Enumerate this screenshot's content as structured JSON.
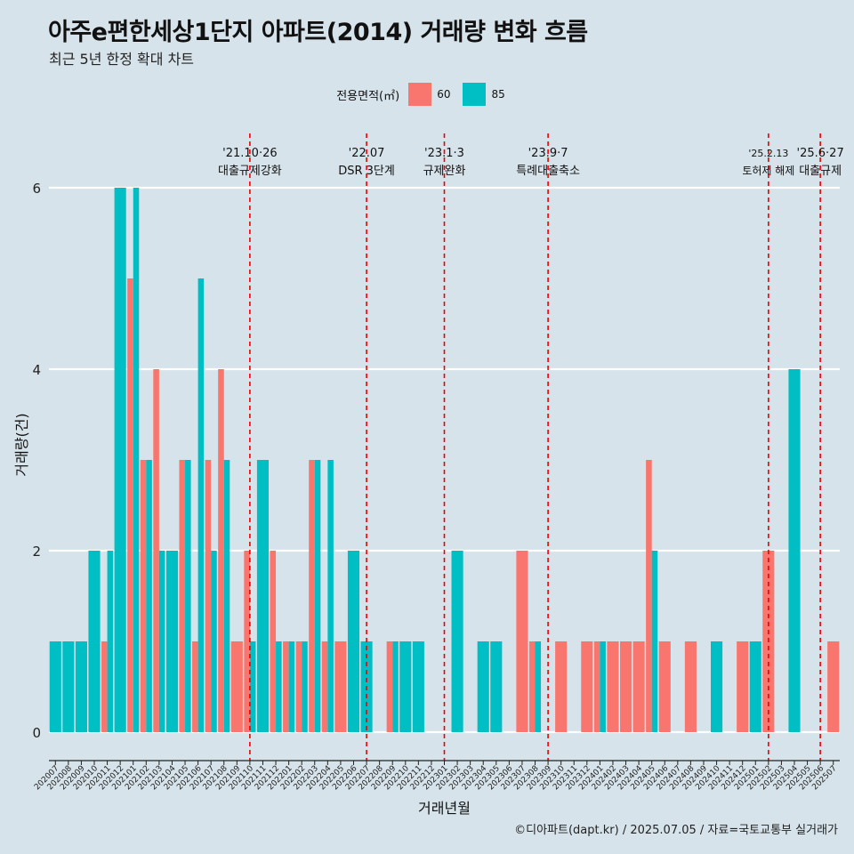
{
  "header": {
    "title": "아주e편한세상1단지 아파트(2014) 거래량 변화 흐름",
    "subtitle": "최근 5년 한정 확대 차트"
  },
  "legend": {
    "title": "전용면적(㎡)",
    "items": [
      {
        "label": "60",
        "color": "#F8766D"
      },
      {
        "label": "85",
        "color": "#00BFC4"
      }
    ]
  },
  "caption": "©디아파트(dapt.kr) / 2025.07.05 / 자료=국토교통부 실거래가",
  "chart_data": {
    "type": "bar",
    "title": "아주e편한세상1단지 아파트(2014) 거래량 변화 흐름",
    "xlabel": "거래년월",
    "ylabel": "거래량(건)",
    "ylim": [
      0,
      6.6
    ],
    "yticks": [
      0,
      2,
      4,
      6
    ],
    "categories": [
      "202007",
      "202008",
      "202009",
      "202010",
      "202011",
      "202012",
      "202101",
      "202102",
      "202103",
      "202104",
      "202105",
      "202106",
      "202107",
      "202108",
      "202109",
      "202110",
      "202111",
      "202112",
      "202201",
      "202202",
      "202203",
      "202204",
      "202205",
      "202206",
      "202207",
      "202208",
      "202209",
      "202210",
      "202211",
      "202212",
      "202301",
      "202302",
      "202303",
      "202304",
      "202305",
      "202306",
      "202307",
      "202308",
      "202309",
      "202310",
      "202311",
      "202312",
      "202401",
      "202402",
      "202403",
      "202404",
      "202405",
      "202406",
      "202407",
      "202408",
      "202409",
      "202410",
      "202411",
      "202412",
      "202501",
      "202502",
      "202503",
      "202504",
      "202505",
      "202506",
      "202507"
    ],
    "series": [
      {
        "name": "60",
        "color": "#F8766D",
        "values": [
          0,
          0,
          0,
          0,
          1,
          0,
          5,
          3,
          4,
          0,
          3,
          1,
          3,
          4,
          1,
          2,
          0,
          2,
          1,
          1,
          3,
          1,
          1,
          0,
          0,
          0,
          1,
          0,
          0,
          0,
          0,
          0,
          0,
          0,
          0,
          0,
          2,
          1,
          0,
          1,
          0,
          1,
          1,
          1,
          1,
          1,
          3,
          1,
          0,
          1,
          0,
          0,
          0,
          1,
          0,
          2,
          0,
          0,
          0,
          0,
          1
        ]
      },
      {
        "name": "85",
        "color": "#00BFC4",
        "values": [
          1,
          1,
          1,
          2,
          2,
          6,
          6,
          3,
          2,
          2,
          3,
          5,
          2,
          3,
          0,
          1,
          3,
          1,
          1,
          1,
          3,
          3,
          0,
          2,
          1,
          0,
          1,
          1,
          1,
          0,
          0,
          2,
          0,
          1,
          1,
          0,
          0,
          1,
          0,
          0,
          0,
          0,
          1,
          0,
          0,
          0,
          2,
          0,
          0,
          0,
          0,
          1,
          0,
          0,
          1,
          0,
          0,
          4,
          0,
          0,
          0
        ]
      }
    ],
    "annotations": [
      {
        "month": "202110",
        "date": "'21.10·26",
        "label": "대출규제강화"
      },
      {
        "month": "202207",
        "date": "'22.07",
        "label": "DSR 3단계"
      },
      {
        "month": "202301",
        "date": "'23.1·3",
        "label": "규제완화"
      },
      {
        "month": "202309",
        "date": "'23.9·7",
        "label": "특례대출축소"
      },
      {
        "month": "202502",
        "date": "'25.2.13",
        "label": "토허제 해제"
      },
      {
        "month": "202506",
        "date": "'25.6·27",
        "label": "대출규제"
      }
    ]
  }
}
